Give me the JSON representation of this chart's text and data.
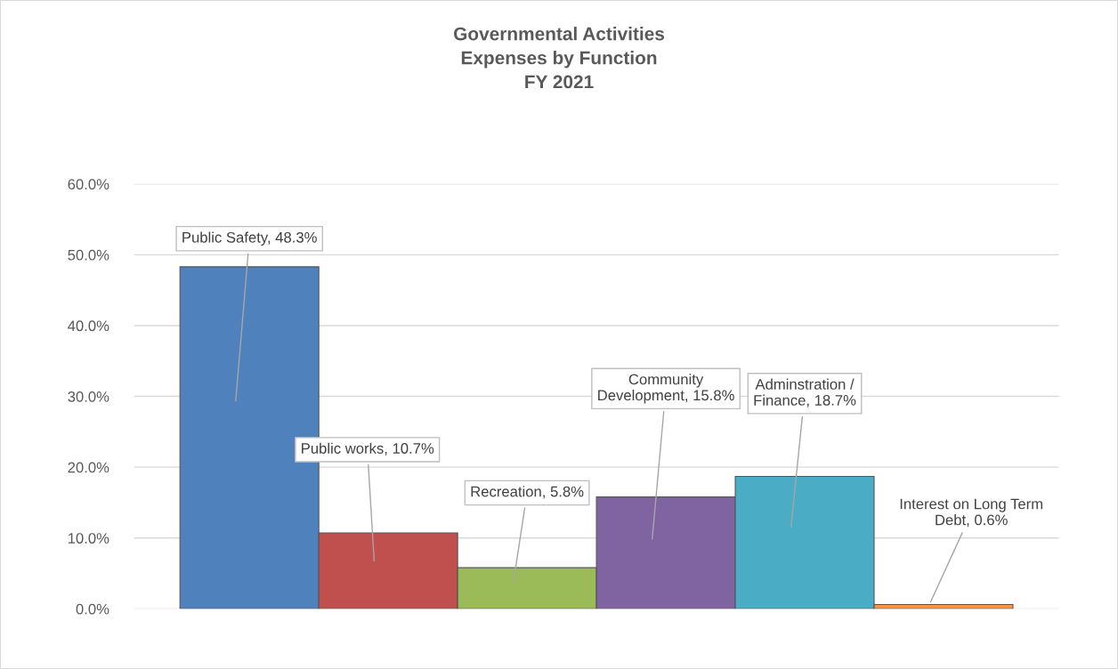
{
  "chart_data": {
    "type": "bar",
    "title": "Governmental Activities\nExpenses by Function\nFY 2021",
    "categories": [
      null,
      null,
      null,
      null,
      null,
      null
    ],
    "values": [
      48.3,
      10.7,
      5.8,
      15.8,
      18.7,
      0.6
    ],
    "colors": [
      "#4f81bd",
      "#c0504d",
      "#9bbb59",
      "#8064a2",
      "#4bacc6",
      "#f79646"
    ],
    "value_labels": [
      "Public Safety, 48.3%",
      "Public works, 10.7%",
      "Recreation, 5.8%",
      "Community\nDevelopment, 15.8%",
      "Adminstration /\nFinance, 18.7%",
      "Interest on Long Term\nDebt, 0.6%"
    ],
    "ylim": [
      0,
      60
    ],
    "yticks": [
      {
        "value": 0,
        "label": "0.0%"
      },
      {
        "value": 10,
        "label": "10.0%"
      },
      {
        "value": 20,
        "label": "20.0%"
      },
      {
        "value": 30,
        "label": "30.0%"
      },
      {
        "value": 40,
        "label": "40.0%"
      },
      {
        "value": 50,
        "label": "50.0%"
      },
      {
        "value": 60,
        "label": "60.0%"
      }
    ],
    "grid": "y"
  }
}
